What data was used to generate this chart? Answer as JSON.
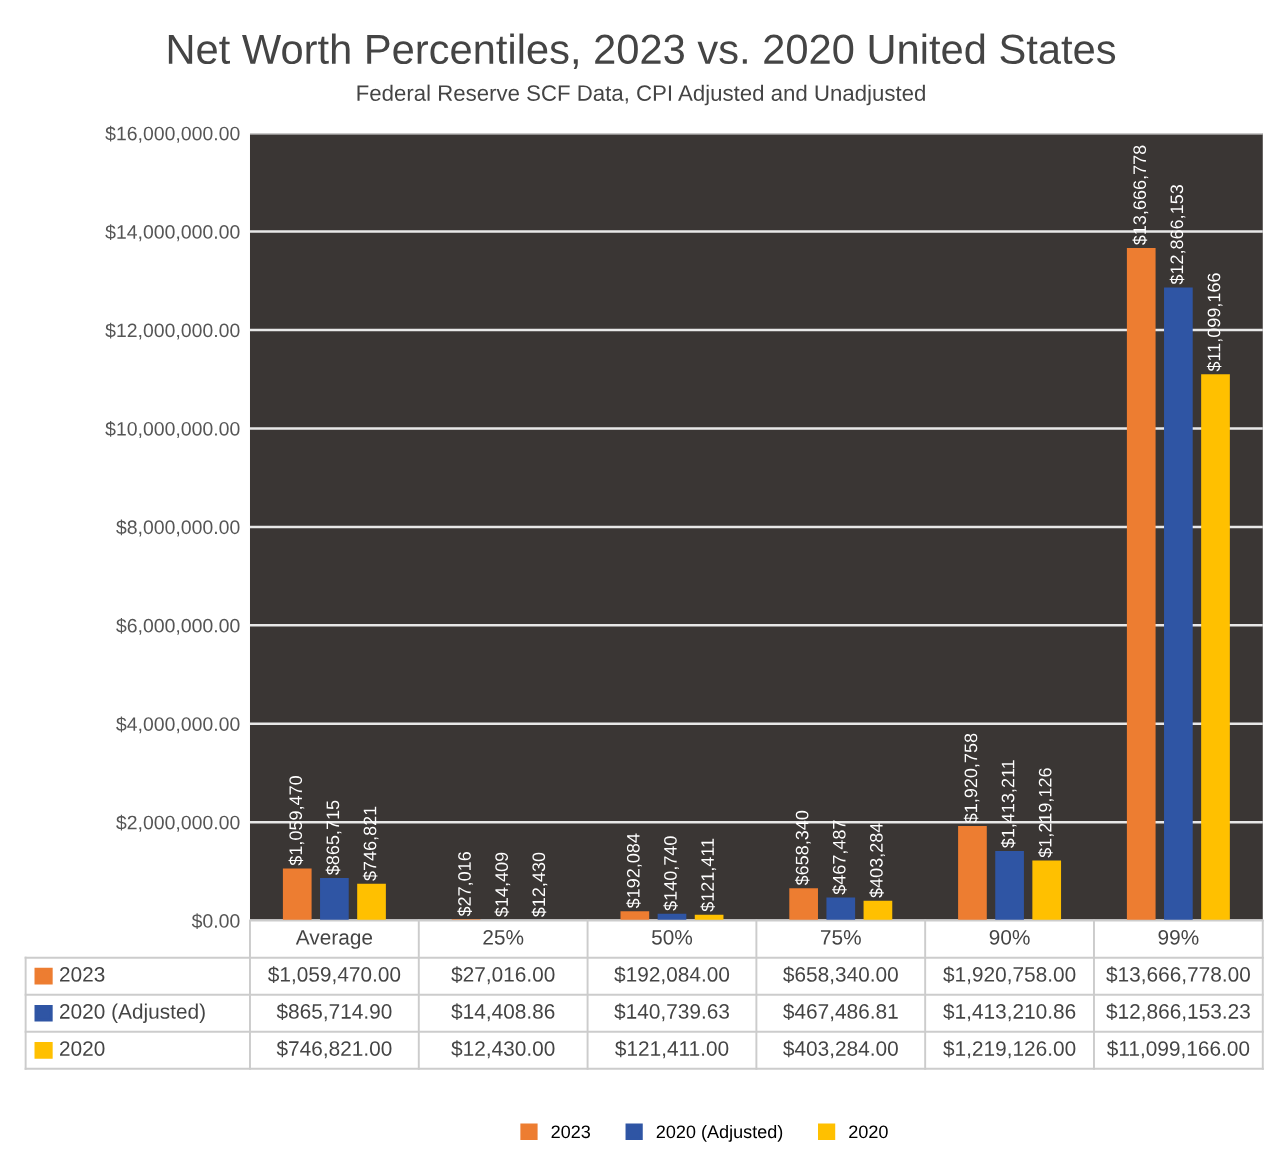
{
  "chart_data": {
    "type": "bar",
    "title": "Net Worth Percentiles, 2023 vs. 2020 United States",
    "subtitle": "Federal Reserve SCF Data, CPI Adjusted and Unadjusted",
    "categories": [
      "Average",
      "25%",
      "50%",
      "75%",
      "90%",
      "99%"
    ],
    "series": [
      {
        "name": "2023",
        "color": "#ed7d31",
        "values": [
          1059470.0,
          27016.0,
          192084.0,
          658340.0,
          1920758.0,
          13666778.0
        ],
        "value_labels": [
          "$1,059,470",
          "$27,016",
          "$192,084",
          "$658,340",
          "$1,920,758",
          "$13,666,778"
        ]
      },
      {
        "name": "2020 (Adjusted)",
        "color": "#2f55a4",
        "values": [
          865714.9,
          14408.86,
          140739.63,
          467486.81,
          1413210.86,
          12866153.23
        ],
        "value_labels": [
          "$865,715",
          "$14,409",
          "$140,740",
          "$467,487",
          "$1,413,211",
          "$12,866,153"
        ]
      },
      {
        "name": "2020",
        "color": "#ffc000",
        "values": [
          746821.0,
          12430.0,
          121411.0,
          403284.0,
          1219126.0,
          11099166.0
        ],
        "value_labels": [
          "$746,821",
          "$12,430",
          "$121,411",
          "$403,284",
          "$1,219,126",
          "$11,099,166"
        ]
      }
    ],
    "annotations": [
      "$1,059,470.00",
      "$27,016.00",
      "$192,084.00",
      "$658,340.00",
      "$1,920,758.00",
      "$13,666,778.00",
      "$865,714.90",
      "$14,408.86",
      "$140,739.63",
      "$467,486.81",
      "$1,413,210.86",
      "$12,866,153.23",
      "$746,821.00",
      "$12,430.00",
      "$121,411.00",
      "$403,284.00",
      "$1,219,126.00",
      "$11,099,166.00"
    ],
    "data_labels": true,
    "ylim": [
      0,
      16000000
    ],
    "yticks": [
      {
        "value": 0,
        "label": "$0.00"
      },
      {
        "value": 2000000,
        "label": "$2,000,000.00"
      },
      {
        "value": 4000000,
        "label": "$4,000,000.00"
      },
      {
        "value": 6000000,
        "label": "$6,000,000.00"
      },
      {
        "value": 8000000,
        "label": "$8,000,000.00"
      },
      {
        "value": 10000000,
        "label": "$10,000,000.00"
      },
      {
        "value": 12000000,
        "label": "$12,000,000.00"
      },
      {
        "value": 14000000,
        "label": "$14,000,000.00"
      },
      {
        "value": 16000000,
        "label": "$16,000,000.00"
      }
    ],
    "grid": "y",
    "legend": "bottom"
  }
}
